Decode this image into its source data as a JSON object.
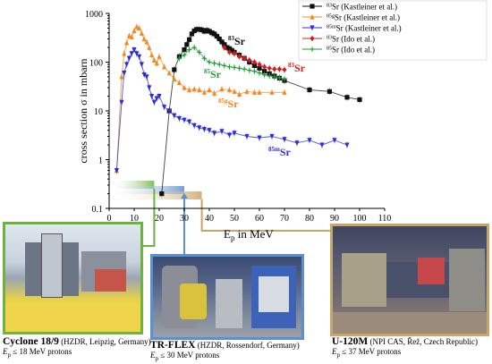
{
  "chart_data": {
    "type": "scatter",
    "y_scale": "log",
    "xlabel": "E",
    "xlabel_sub": "p",
    "xlabel_tail": " in MeV",
    "ylabel": "cross section σ in mbarn",
    "xlim": [
      0,
      110
    ],
    "ylim": [
      0.1,
      1000
    ],
    "xticks": [
      "0",
      "10",
      "20",
      "30",
      "40",
      "50",
      "60",
      "70",
      "80",
      "90",
      "100",
      "110"
    ],
    "yticks": [
      "0.1",
      "1",
      "10",
      "100",
      "1000"
    ],
    "legend_position": "top-right",
    "series": [
      {
        "name": "83Sr (Kastleiner et al.)",
        "iso": "83",
        "el": "Sr",
        "tail": " (Kastleiner et al.)",
        "color": "#111111",
        "marker": "square",
        "x": [
          21,
          24,
          26,
          28,
          30,
          31,
          32,
          33,
          34,
          35,
          36,
          37,
          38,
          39,
          40,
          41,
          42,
          43,
          44,
          45,
          46,
          47,
          48,
          49,
          50,
          52,
          54,
          56,
          58,
          60,
          62,
          64,
          66,
          68,
          70,
          80,
          88,
          95,
          100
        ],
        "y": [
          0.2,
          10,
          70,
          130,
          180,
          230,
          290,
          380,
          440,
          470,
          470,
          460,
          430,
          450,
          430,
          400,
          380,
          340,
          300,
          260,
          230,
          200,
          190,
          175,
          160,
          140,
          120,
          100,
          85,
          75,
          65,
          58,
          52,
          47,
          42,
          27,
          25,
          19,
          17
        ]
      },
      {
        "name": "85gSr (Kastleiner et al.)",
        "iso": "85g",
        "el": "Sr",
        "tail": " (Kastleiner et al.)",
        "color": "#f08a24",
        "marker": "triangle",
        "x": [
          3,
          5,
          6,
          7,
          8,
          9,
          10,
          11,
          12,
          13,
          14,
          15,
          16,
          17,
          18,
          19,
          20,
          22,
          24,
          26,
          28,
          30,
          32,
          34,
          36,
          38,
          40,
          42,
          45,
          48,
          50,
          52,
          55,
          58,
          60,
          65,
          70
        ],
        "y": [
          0.6,
          50,
          150,
          250,
          350,
          330,
          440,
          530,
          500,
          390,
          300,
          260,
          200,
          140,
          110,
          95,
          130,
          80,
          60,
          45,
          38,
          30,
          27,
          28,
          27,
          24,
          27,
          23,
          28,
          27,
          25,
          22,
          25,
          24,
          24,
          24,
          24
        ]
      },
      {
        "name": "85mSr (Kastleiner et al.)",
        "iso": "85m",
        "el": "Sr",
        "tail": " (Kastleiner et al.)",
        "color": "#2d2dd4",
        "marker": "triangle-down",
        "x": [
          3,
          5,
          6,
          7,
          8,
          9,
          10,
          11,
          12,
          13,
          14,
          15,
          16,
          17,
          18,
          19,
          20,
          22,
          24,
          26,
          28,
          30,
          32,
          34,
          36,
          38,
          40,
          42,
          45,
          48,
          50,
          55,
          60,
          65,
          70,
          75,
          80,
          85,
          90,
          95
        ],
        "y": [
          0.6,
          15,
          60,
          90,
          120,
          150,
          180,
          150,
          130,
          90,
          55,
          50,
          30,
          20,
          15,
          18,
          20,
          12,
          10,
          8,
          7,
          6.5,
          6,
          5,
          4.5,
          4.2,
          4,
          3.5,
          3.8,
          3.2,
          3.5,
          3,
          2.8,
          3,
          2.6,
          2.2,
          2.5,
          2,
          2.5,
          2
        ]
      },
      {
        "name": "83Sr (Ido et al.)",
        "iso": "83",
        "el": "Sr",
        "tail": " (Ido et al.)",
        "color": "#cc2020",
        "marker": "diamond",
        "x": [
          46,
          48,
          50,
          52,
          54,
          56,
          58,
          60,
          62,
          64,
          66,
          68,
          70
        ],
        "y": [
          200,
          160,
          150,
          130,
          120,
          110,
          100,
          90,
          80,
          75,
          72,
          72,
          70
        ]
      },
      {
        "name": "85Sr (Ido et al.)",
        "iso": "85",
        "el": "Sr",
        "tail": " (Ido et al.)",
        "color": "#1f9c3a",
        "marker": "plus",
        "x": [
          28,
          30,
          32,
          34,
          36,
          38,
          40,
          42,
          44,
          46,
          48,
          50,
          52,
          54,
          56,
          58,
          60,
          62,
          64,
          66,
          68,
          70
        ],
        "y": [
          120,
          140,
          180,
          200,
          160,
          120,
          100,
          95,
          90,
          85,
          80,
          78,
          75,
          72,
          68,
          65,
          60,
          55,
          52,
          50,
          48,
          45
        ]
      }
    ],
    "annotations": [
      {
        "iso": "83",
        "el": "Sr",
        "color": "#111111"
      },
      {
        "iso": "85",
        "el": "Sr",
        "color": "#1f9c3a"
      },
      {
        "iso": "83",
        "el": "Sr",
        "color": "#cc2020"
      },
      {
        "iso": "85g",
        "el": "Sr",
        "color": "#f08a24"
      },
      {
        "iso": "85m",
        "el": "Sr",
        "color": "#2d2dd4"
      }
    ],
    "energy_ranges": [
      {
        "from": 0,
        "to": 18,
        "color": "#6db33f"
      },
      {
        "from": 0,
        "to": 30,
        "color": "#5b8fd0"
      },
      {
        "from": 0,
        "to": 37,
        "color": "#c9a56a"
      }
    ]
  },
  "facilities": [
    {
      "name": "Cyclone 18/9",
      "detail": " (HZDR, Leipzig, Germany)",
      "ep": "E",
      "ep_sub": "p",
      "ep_tail": " ≤ 18 MeV protons",
      "frame_color": "#6db33f"
    },
    {
      "name": "TR-FLEX",
      "detail": " (HZDR, Rossendorf, Germany)",
      "ep": "E",
      "ep_sub": "p",
      "ep_tail": " ≤ 30 MeV protons",
      "frame_color": "#5b8fd0"
    },
    {
      "name": "U-120M",
      "detail": " (NPI CAS, Řež, Czech Republic)",
      "ep": "E",
      "ep_sub": "p",
      "ep_tail": " ≤ 37 MeV protons",
      "frame_color": "#c9a56a"
    }
  ]
}
